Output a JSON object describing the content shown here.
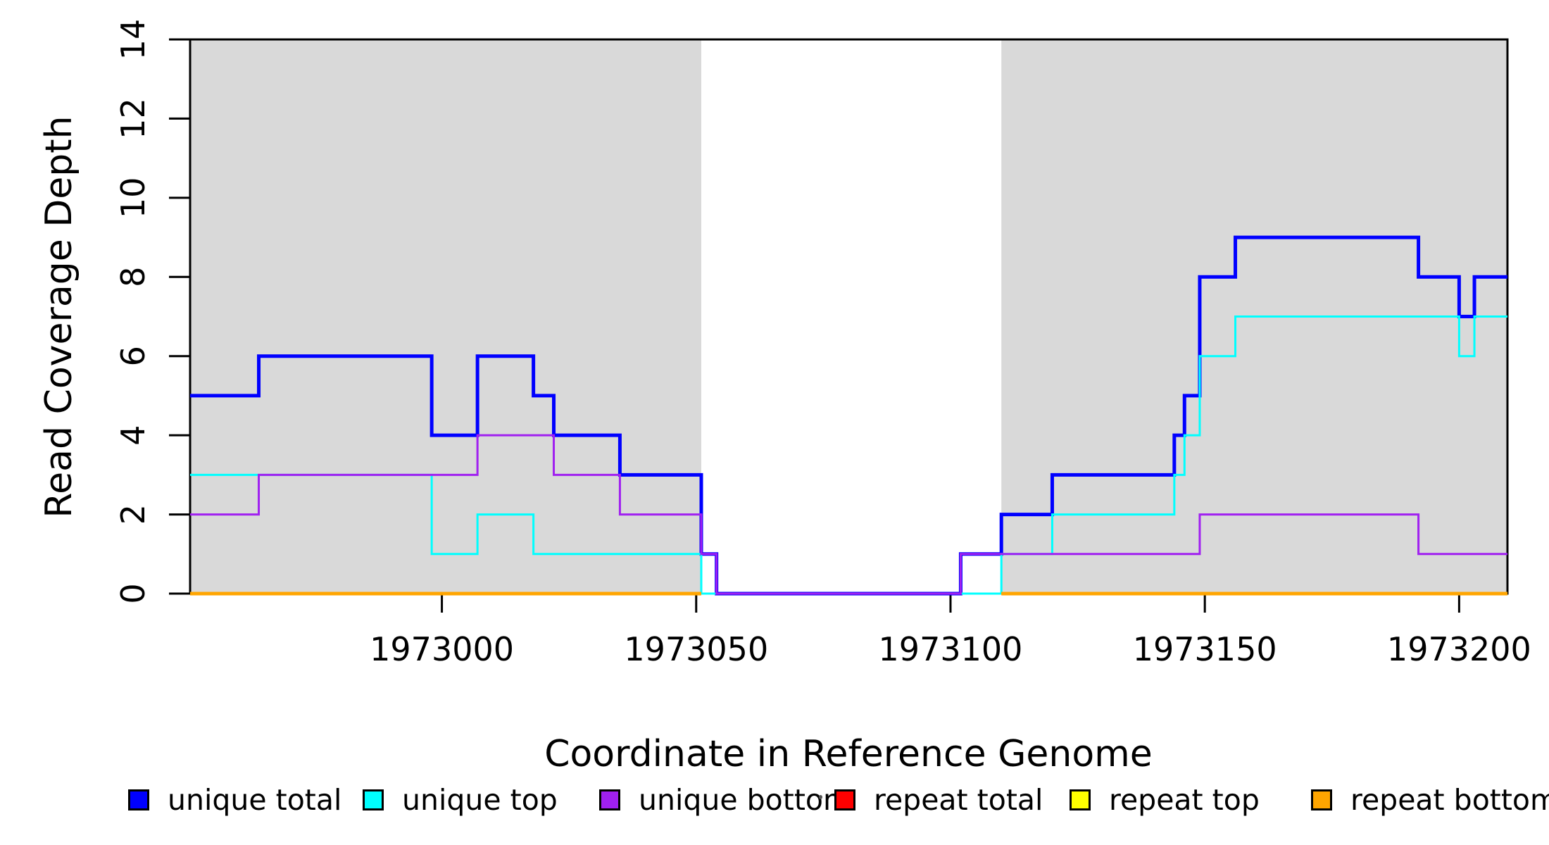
{
  "chart_data": {
    "type": "line",
    "subtype": "step",
    "title": "",
    "xlabel": "Coordinate in Reference Genome",
    "ylabel": "Read Coverage Depth",
    "xlim": [
      1972950.5,
      1973209.5
    ],
    "ylim": [
      0,
      14
    ],
    "x_ticks": [
      1973000,
      1973050,
      1973100,
      1973150,
      1973200
    ],
    "y_ticks": [
      0,
      2,
      4,
      6,
      8,
      10,
      12,
      14
    ],
    "grid": false,
    "legend_position": "bottom",
    "axis_color": "#000000",
    "background_shading": {
      "color": "#D9D9D9",
      "regions": [
        [
          1972950.5,
          1973051
        ],
        [
          1973110,
          1973209.5
        ]
      ]
    },
    "series": [
      {
        "name": "unique total",
        "color": "#0000FF",
        "line_width": 5,
        "steps": [
          [
            1972950.5,
            5
          ],
          [
            1972964,
            6
          ],
          [
            1972998,
            4
          ],
          [
            1973007,
            6
          ],
          [
            1973018,
            5
          ],
          [
            1973022,
            4
          ],
          [
            1973035,
            3
          ],
          [
            1973051,
            1
          ],
          [
            1973054,
            0
          ],
          [
            1973102,
            1
          ],
          [
            1973110,
            2
          ],
          [
            1973120,
            3
          ],
          [
            1973144,
            4
          ],
          [
            1973146,
            5
          ],
          [
            1973149,
            8
          ],
          [
            1973156,
            9
          ],
          [
            1973192,
            8
          ],
          [
            1973200,
            7
          ],
          [
            1973203,
            8
          ]
        ]
      },
      {
        "name": "unique top",
        "color": "#00FFFF",
        "line_width": 3,
        "steps": [
          [
            1972950.5,
            3
          ],
          [
            1972998,
            1
          ],
          [
            1973007,
            2
          ],
          [
            1973018,
            1
          ],
          [
            1973051,
            0
          ],
          [
            1973110,
            1
          ],
          [
            1973120,
            2
          ],
          [
            1973144,
            3
          ],
          [
            1973146,
            4
          ],
          [
            1973149,
            6
          ],
          [
            1973156,
            7
          ],
          [
            1973200,
            6
          ],
          [
            1973203,
            7
          ]
        ]
      },
      {
        "name": "unique bottom",
        "color": "#A020F0",
        "line_width": 3,
        "steps": [
          [
            1972950.5,
            2
          ],
          [
            1972964,
            3
          ],
          [
            1973007,
            4
          ],
          [
            1973022,
            3
          ],
          [
            1973035,
            2
          ],
          [
            1973051,
            1
          ],
          [
            1973054,
            0
          ],
          [
            1973102,
            1
          ],
          [
            1973149,
            2
          ],
          [
            1973192,
            1
          ]
        ]
      },
      {
        "name": "repeat total",
        "color": "#FF0000",
        "line_width": 3,
        "constant_value": 0,
        "segments": [
          [
            1972950.5,
            1973051
          ],
          [
            1973110,
            1973209.5
          ]
        ]
      },
      {
        "name": "repeat top",
        "color": "#FFFF00",
        "line_width": 3,
        "constant_value": 0,
        "segments": [
          [
            1972950.5,
            1973051
          ],
          [
            1973110,
            1973209.5
          ]
        ]
      },
      {
        "name": "repeat bottom",
        "color": "#FFA500",
        "line_width": 5,
        "constant_value": 0,
        "segments": [
          [
            1972950.5,
            1973051
          ],
          [
            1973110,
            1973209.5
          ]
        ]
      }
    ],
    "legend": [
      {
        "label": "unique total",
        "color": "#0000FF"
      },
      {
        "label": "unique top",
        "color": "#00FFFF"
      },
      {
        "label": "unique bottom",
        "color": "#A020F0"
      },
      {
        "label": "repeat total",
        "color": "#FF0000"
      },
      {
        "label": "repeat top",
        "color": "#FFFF00"
      },
      {
        "label": "repeat bottom",
        "color": "#FFA500"
      }
    ]
  }
}
